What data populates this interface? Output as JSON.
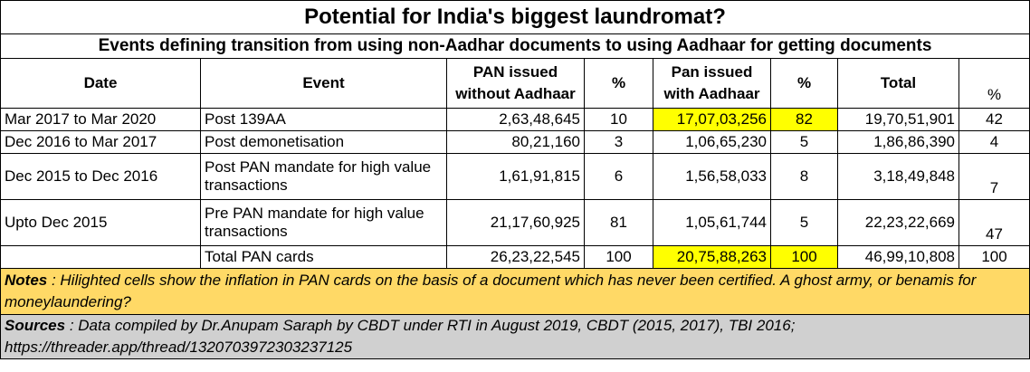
{
  "title": "Potential for India's biggest laundromat?",
  "subtitle": "Events defining transition from using non-Aadhar documents to using Aadhaar for getting documents",
  "headers": {
    "date": "Date",
    "event": "Event",
    "pan_without": "PAN issued without Aadhaar",
    "pct1": "%",
    "pan_with": "Pan issued with Aadhaar",
    "pct2": "%",
    "total": "Total",
    "pct3": "%"
  },
  "rows": [
    {
      "date": "Mar 2017 to Mar 2020",
      "event": "Post 139AA",
      "without": "2,63,48,645",
      "pct1": "10",
      "with": "17,07,03,256",
      "pct2": "82",
      "total": "19,70,51,901",
      "pct3": "42"
    },
    {
      "date": "Dec 2016 to Mar 2017",
      "event": "Post demonetisation",
      "without": "80,21,160",
      "pct1": "3",
      "with": "1,06,65,230",
      "pct2": "5",
      "total": "1,86,86,390",
      "pct3": "4"
    },
    {
      "date": "Dec 2015 to Dec 2016",
      "event": "Post PAN mandate for high value transactions",
      "without": "1,61,91,815",
      "pct1": "6",
      "with": "1,56,58,033",
      "pct2": "8",
      "total": "3,18,49,848",
      "pct3": "7"
    },
    {
      "date": "Upto Dec 2015",
      "event": "Pre PAN mandate for high value transactions",
      "without": "21,17,60,925",
      "pct1": "81",
      "with": "1,05,61,744",
      "pct2": "5",
      "total": "22,23,22,669",
      "pct3": "47"
    },
    {
      "date": "",
      "event": "Total PAN cards",
      "without": "26,23,22,545",
      "pct1": "100",
      "with": "20,75,88,263",
      "pct2": "100",
      "total": "46,99,10,808",
      "pct3": "100"
    }
  ],
  "notes": {
    "label": "Notes",
    "text": " : Hilighted cells show the inflation in PAN cards on the basis of a document which has never been certified.  A ghost army, or benamis for moneylaundering?"
  },
  "sources": {
    "label": "Sources",
    "text": " : Data compiled by Dr.Anupam Saraph by CBDT under RTI in August 2019, CBDT (2015, 2017), TBI 2016; https://threader.app/thread/1320703972303237125"
  },
  "highlight_color": "#ffff00",
  "notes_color": "#ffd966",
  "sources_color": "#d0d0d0"
}
